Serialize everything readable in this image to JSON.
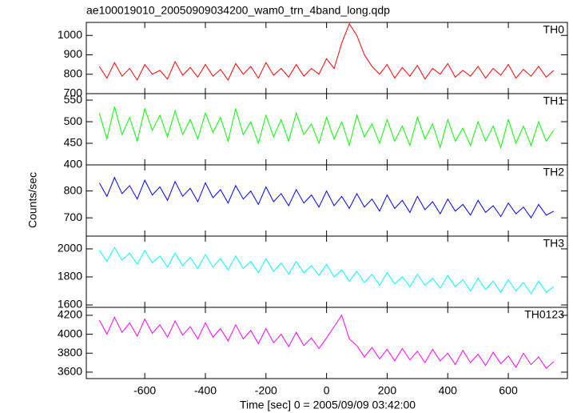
{
  "title": "ae100019010_20050909034200_wam0_trn_4band_long.qdp",
  "ylabel": "Counts/sec",
  "xlabel": "Time [sec] 0 = 2005/09/09 03:42:00",
  "chart_data": [
    {
      "type": "line",
      "x": [
        -750,
        -725,
        -700,
        -675,
        -650,
        -625,
        -600,
        -575,
        -550,
        -525,
        -500,
        -475,
        -450,
        -425,
        -400,
        -375,
        -350,
        -325,
        -300,
        -275,
        -250,
        -225,
        -200,
        -175,
        -150,
        -125,
        -100,
        -75,
        -50,
        -25,
        0,
        25,
        50,
        75,
        100,
        125,
        150,
        175,
        200,
        225,
        250,
        275,
        300,
        325,
        350,
        375,
        400,
        425,
        450,
        475,
        500,
        525,
        550,
        575,
        600,
        625,
        650,
        675,
        700,
        725,
        750
      ],
      "series": [
        {
          "name": "TH0",
          "color": "#ff0000",
          "values": [
            840,
            780,
            860,
            790,
            830,
            770,
            850,
            800,
            820,
            775,
            865,
            795,
            835,
            785,
            850,
            790,
            825,
            770,
            855,
            800,
            840,
            780,
            860,
            795,
            830,
            785,
            850,
            790,
            830,
            800,
            880,
            830,
            960,
            1060,
            1000,
            900,
            840,
            800,
            850,
            780,
            835,
            790,
            845,
            775,
            830,
            800,
            855,
            785,
            820,
            790,
            840,
            780,
            830,
            795,
            850,
            780,
            825,
            790,
            840,
            785,
            820
          ]
        }
      ],
      "xlim": [
        -793,
        795
      ],
      "xticks": [
        -600,
        -400,
        -200,
        0,
        200,
        400,
        600
      ],
      "ylim": [
        700,
        1067
      ],
      "yticks": [
        700,
        800,
        900,
        1000
      ]
    },
    {
      "type": "line",
      "x": [
        -750,
        -725,
        -700,
        -675,
        -650,
        -625,
        -600,
        -575,
        -550,
        -525,
        -500,
        -475,
        -450,
        -425,
        -400,
        -375,
        -350,
        -325,
        -300,
        -275,
        -250,
        -225,
        -200,
        -175,
        -150,
        -125,
        -100,
        -75,
        -50,
        -25,
        0,
        25,
        50,
        75,
        100,
        125,
        150,
        175,
        200,
        225,
        250,
        275,
        300,
        325,
        350,
        375,
        400,
        425,
        450,
        475,
        500,
        525,
        550,
        575,
        600,
        625,
        650,
        675,
        700,
        725,
        750
      ],
      "series": [
        {
          "name": "TH1",
          "color": "#00ff00",
          "values": [
            520,
            460,
            535,
            470,
            510,
            455,
            530,
            480,
            515,
            465,
            525,
            470,
            505,
            460,
            520,
            475,
            510,
            455,
            530,
            470,
            500,
            450,
            515,
            465,
            505,
            455,
            520,
            470,
            495,
            450,
            510,
            460,
            500,
            445,
            515,
            465,
            495,
            450,
            505,
            455,
            490,
            445,
            510,
            460,
            495,
            440,
            505,
            455,
            485,
            445,
            500,
            455,
            490,
            440,
            505,
            450,
            490,
            445,
            500,
            455,
            480
          ]
        }
      ],
      "xlim": [
        -793,
        795
      ],
      "xticks": [
        -600,
        -400,
        -200,
        0,
        200,
        400,
        600
      ],
      "ylim": [
        400,
        565
      ],
      "yticks": [
        400,
        450,
        500,
        550
      ]
    },
    {
      "type": "line",
      "x": [
        -750,
        -725,
        -700,
        -675,
        -650,
        -625,
        -600,
        -575,
        -550,
        -525,
        -500,
        -475,
        -450,
        -425,
        -400,
        -375,
        -350,
        -325,
        -300,
        -275,
        -250,
        -225,
        -200,
        -175,
        -150,
        -125,
        -100,
        -75,
        -50,
        -25,
        0,
        25,
        50,
        75,
        100,
        125,
        150,
        175,
        200,
        225,
        250,
        275,
        300,
        325,
        350,
        375,
        400,
        425,
        450,
        475,
        500,
        525,
        550,
        575,
        600,
        625,
        650,
        675,
        700,
        725,
        750
      ],
      "series": [
        {
          "name": "TH2",
          "color": "#0000ff",
          "values": [
            830,
            780,
            850,
            790,
            820,
            770,
            840,
            785,
            815,
            765,
            835,
            780,
            810,
            760,
            830,
            775,
            805,
            755,
            820,
            770,
            800,
            750,
            815,
            760,
            790,
            745,
            805,
            755,
            785,
            740,
            800,
            745,
            780,
            735,
            790,
            740,
            770,
            725,
            785,
            735,
            765,
            720,
            780,
            730,
            760,
            715,
            770,
            725,
            750,
            710,
            765,
            720,
            745,
            705,
            755,
            715,
            740,
            700,
            750,
            710,
            725
          ]
        }
      ],
      "xlim": [
        -793,
        795
      ],
      "xticks": [
        -600,
        -400,
        -200,
        0,
        200,
        400,
        600
      ],
      "ylim": [
        632,
        897
      ],
      "yticks": [
        700,
        800
      ]
    },
    {
      "type": "line",
      "x": [
        -750,
        -725,
        -700,
        -675,
        -650,
        -625,
        -600,
        -575,
        -550,
        -525,
        -500,
        -475,
        -450,
        -425,
        -400,
        -375,
        -350,
        -325,
        -300,
        -275,
        -250,
        -225,
        -200,
        -175,
        -150,
        -125,
        -100,
        -75,
        -50,
        -25,
        0,
        25,
        50,
        75,
        100,
        125,
        150,
        175,
        200,
        225,
        250,
        275,
        300,
        325,
        350,
        375,
        400,
        425,
        450,
        475,
        500,
        525,
        550,
        575,
        600,
        625,
        650,
        675,
        700,
        725,
        750
      ],
      "series": [
        {
          "name": "TH3",
          "color": "#00ffff",
          "values": [
            1990,
            1910,
            2010,
            1920,
            1970,
            1890,
            1990,
            1900,
            1950,
            1870,
            1970,
            1880,
            1940,
            1860,
            1960,
            1870,
            1930,
            1850,
            1950,
            1860,
            1910,
            1830,
            1930,
            1840,
            1900,
            1820,
            1910,
            1830,
            1880,
            1810,
            1890,
            1800,
            1850,
            1770,
            1840,
            1760,
            1820,
            1740,
            1830,
            1750,
            1800,
            1730,
            1820,
            1740,
            1790,
            1720,
            1810,
            1730,
            1780,
            1700,
            1790,
            1710,
            1770,
            1690,
            1780,
            1700,
            1760,
            1680,
            1770,
            1690,
            1730
          ]
        }
      ],
      "xlim": [
        -793,
        795
      ],
      "xticks": [
        -600,
        -400,
        -200,
        0,
        200,
        400,
        600
      ],
      "ylim": [
        1583,
        2091
      ],
      "yticks": [
        1600,
        1800,
        2000
      ]
    },
    {
      "type": "line",
      "x": [
        -750,
        -725,
        -700,
        -675,
        -650,
        -625,
        -600,
        -575,
        -550,
        -525,
        -500,
        -475,
        -450,
        -425,
        -400,
        -375,
        -350,
        -325,
        -300,
        -275,
        -250,
        -225,
        -200,
        -175,
        -150,
        -125,
        -100,
        -75,
        -50,
        -25,
        0,
        25,
        50,
        75,
        100,
        125,
        150,
        175,
        200,
        225,
        250,
        275,
        300,
        325,
        350,
        375,
        400,
        425,
        450,
        475,
        500,
        525,
        550,
        575,
        600,
        625,
        650,
        675,
        700,
        725,
        750
      ],
      "series": [
        {
          "name": "TH0123",
          "color": "#ff00ff",
          "values": [
            4150,
            4000,
            4180,
            4020,
            4120,
            3980,
            4160,
            4010,
            4100,
            3970,
            4140,
            3990,
            4080,
            3950,
            4120,
            3970,
            4060,
            3930,
            4100,
            3950,
            4040,
            3900,
            4060,
            3910,
            4000,
            3870,
            4020,
            3880,
            3960,
            3850,
            3960,
            4080,
            4200,
            3950,
            3880,
            3760,
            3860,
            3740,
            3840,
            3720,
            3850,
            3730,
            3820,
            3700,
            3840,
            3720,
            3800,
            3680,
            3830,
            3700,
            3790,
            3670,
            3810,
            3690,
            3770,
            3650,
            3800,
            3680,
            3760,
            3640,
            3710
          ]
        }
      ],
      "xlim": [
        -793,
        795
      ],
      "xticks": [
        -600,
        -400,
        -200,
        0,
        200,
        400,
        600
      ],
      "ylim": [
        3532,
        4284
      ],
      "yticks": [
        3600,
        3800,
        4000,
        4200
      ]
    }
  ]
}
